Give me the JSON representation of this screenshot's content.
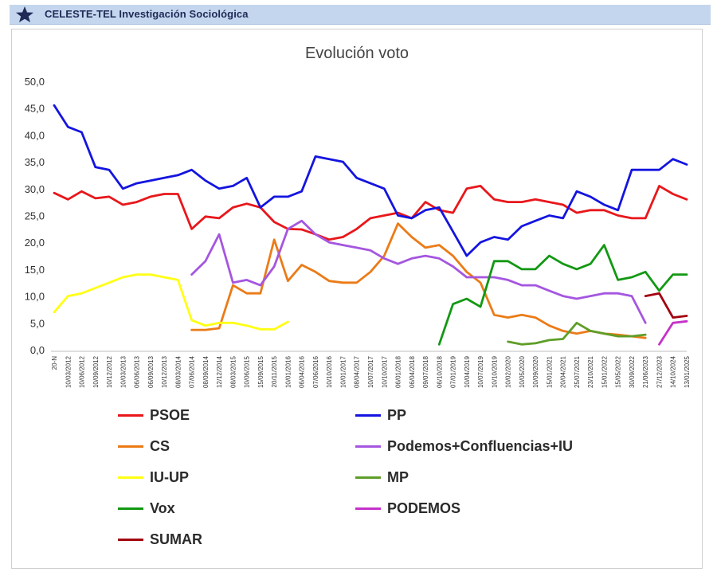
{
  "header": {
    "title": "CELESTE-TEL Investigación Sociológica",
    "icon": "star-icon"
  },
  "chart_data": {
    "type": "line",
    "title": "Evolución voto",
    "xlabel": "",
    "ylabel": "",
    "ylim": [
      0,
      50
    ],
    "yticks": [
      "0,0",
      "5,0",
      "10,0",
      "15,0",
      "20,0",
      "25,0",
      "30,0",
      "35,0",
      "40,0",
      "45,0",
      "50,0"
    ],
    "xticks": [
      "20-N",
      "10/03/2012",
      "10/06/2012",
      "10/09/2012",
      "10/12/2012",
      "10/03/2013",
      "06/06/2013",
      "06/09/2013",
      "10/12/2013",
      "08/03/2014",
      "07/06/2014",
      "08/09/2014",
      "12/12/2014",
      "08/03/2015",
      "10/06/2015",
      "15/09/2015",
      "20/11/2015",
      "10/01/2016",
      "06/04/2016",
      "07/06/2016",
      "10/10/2016",
      "10/01/2017",
      "08/04/2017",
      "10/07/2017",
      "10/10/2017",
      "06/01/2018",
      "06/04/2018",
      "09/07/2018",
      "06/10/2018",
      "07/01/2019",
      "10/04/2019",
      "10/07/2019",
      "10/10/2019",
      "10/02/2020",
      "10/05/2020",
      "10/09/2020",
      "15/01/2021",
      "20/04/2021",
      "25/07/2021",
      "23/10/2021",
      "15/01/2022",
      "15/05/2022",
      "30/09/2022",
      "21/06/2023",
      "27/12/2023",
      "14/10/2024",
      "13/01/2025"
    ],
    "grid": false,
    "legend_position": "bottom",
    "series": [
      {
        "name": "PSOE",
        "color": "#e8171b",
        "x": [
          0,
          1,
          2,
          3,
          4,
          5,
          6,
          7,
          8,
          9,
          10,
          11,
          12,
          13,
          14,
          15,
          16,
          17,
          18,
          19,
          20,
          21,
          22,
          23,
          24,
          25,
          26,
          27,
          28,
          29,
          30,
          31,
          32,
          33,
          34,
          35,
          36,
          37,
          38,
          39,
          40,
          41,
          42,
          43,
          44,
          45,
          46
        ],
        "values": [
          29.2,
          28.0,
          29.5,
          28.2,
          28.5,
          27.0,
          27.5,
          28.5,
          29.0,
          29.0,
          22.5,
          24.8,
          24.5,
          26.5,
          27.2,
          26.5,
          23.8,
          22.5,
          22.4,
          21.5,
          20.5,
          21.0,
          22.5,
          24.5,
          25.0,
          25.5,
          24.5,
          27.5,
          26.0,
          25.5,
          30.0,
          30.5,
          28.0,
          27.5,
          27.5,
          28.0,
          27.5,
          27.0,
          25.5,
          26.0,
          26.0,
          25.0,
          24.5,
          24.5,
          30.5,
          29.0,
          28.0
        ]
      },
      {
        "name": "PP",
        "color": "#1414e0",
        "x": [
          0,
          1,
          2,
          3,
          4,
          5,
          6,
          7,
          8,
          9,
          10,
          11,
          12,
          13,
          14,
          15,
          16,
          17,
          18,
          19,
          20,
          21,
          22,
          23,
          24,
          25,
          26,
          27,
          28,
          29,
          30,
          31,
          32,
          33,
          34,
          35,
          36,
          37,
          38,
          39,
          40,
          41,
          42,
          43,
          44,
          45,
          46
        ],
        "values": [
          45.5,
          41.5,
          40.5,
          34.0,
          33.5,
          30.0,
          31.0,
          31.5,
          32.0,
          32.5,
          33.5,
          31.5,
          30.0,
          30.5,
          32.0,
          26.5,
          28.5,
          28.5,
          29.5,
          36.0,
          35.5,
          35.0,
          32.0,
          31.0,
          30.0,
          25.0,
          24.5,
          26.0,
          26.5,
          22.0,
          17.5,
          20.0,
          21.0,
          20.5,
          23.0,
          24.0,
          25.0,
          24.5,
          29.5,
          28.5,
          27.0,
          26.0,
          33.5,
          33.5,
          33.5,
          35.5,
          34.5
        ]
      },
      {
        "name": "CS",
        "color": "#eb7b17",
        "x": [
          10,
          11,
          12,
          13,
          14,
          15,
          16,
          17,
          18,
          19,
          20,
          21,
          22,
          23,
          24,
          25,
          26,
          27,
          28,
          29,
          30,
          31,
          32,
          33,
          34,
          35,
          36,
          37,
          38,
          39,
          40,
          41,
          42,
          43
        ],
        "values": [
          3.7,
          3.7,
          4.0,
          12.0,
          10.5,
          10.5,
          20.5,
          12.8,
          15.8,
          14.5,
          12.8,
          12.5,
          12.5,
          14.5,
          17.5,
          23.5,
          21.0,
          19.0,
          19.5,
          17.5,
          14.5,
          12.5,
          6.5,
          6.0,
          6.5,
          6.0,
          4.5,
          3.5,
          3.0,
          3.5,
          3.0,
          2.8,
          2.5,
          2.2
        ]
      },
      {
        "name": "Podemos+Confluencias+IU",
        "color": "#a556e0",
        "x": [
          10,
          11,
          12,
          13,
          14,
          15,
          16,
          17,
          18,
          19,
          20,
          21,
          22,
          23,
          24,
          25,
          26,
          27,
          28,
          29,
          30,
          31,
          32,
          33,
          34,
          35,
          36,
          37,
          38,
          39,
          40,
          41,
          42,
          43
        ],
        "values": [
          14.0,
          16.5,
          21.5,
          12.5,
          13.0,
          12.0,
          15.5,
          22.5,
          24.0,
          21.5,
          20.0,
          19.5,
          19.0,
          18.5,
          17.0,
          16.0,
          17.0,
          17.5,
          17.0,
          15.5,
          13.5,
          13.5,
          13.5,
          13.0,
          12.0,
          12.0,
          11.0,
          10.0,
          9.5,
          10.0,
          10.5,
          10.5,
          10.0,
          5.0
        ]
      },
      {
        "name": "IU-UP",
        "color": "#ffff14",
        "x": [
          0,
          1,
          2,
          3,
          4,
          5,
          6,
          7,
          8,
          9,
          10,
          11,
          12,
          13,
          14,
          15,
          16,
          17
        ],
        "values": [
          7.0,
          10.0,
          10.5,
          11.5,
          12.5,
          13.5,
          14.0,
          14.0,
          13.5,
          13.0,
          5.5,
          4.5,
          5.0,
          5.0,
          4.5,
          3.8,
          3.8,
          5.2
        ]
      },
      {
        "name": "MP",
        "color": "#5e9e28",
        "x": [
          33,
          34,
          35,
          36,
          37,
          38,
          39,
          40,
          41,
          42,
          43
        ],
        "values": [
          1.5,
          1.0,
          1.2,
          1.8,
          2.0,
          5.0,
          3.5,
          3.0,
          2.5,
          2.5,
          2.8
        ]
      },
      {
        "name": "Vox",
        "color": "#139813",
        "x": [
          28,
          29,
          30,
          31,
          32,
          33,
          34,
          35,
          36,
          37,
          38,
          39,
          40,
          41,
          42,
          43,
          44,
          45,
          46
        ],
        "values": [
          1.0,
          8.5,
          9.5,
          8.0,
          16.5,
          16.5,
          15.0,
          15.0,
          17.5,
          16.0,
          15.0,
          16.0,
          19.5,
          13.0,
          13.5,
          14.5,
          11.0,
          14.0,
          14.0
        ]
      },
      {
        "name": "PODEMOS",
        "color": "#c431c9",
        "x": [
          44,
          45,
          46
        ],
        "values": [
          1.0,
          5.0,
          5.3
        ]
      },
      {
        "name": "SUMAR",
        "color": "#a3000f",
        "x": [
          43,
          44,
          45,
          46
        ],
        "values": [
          10.0,
          10.5,
          6.0,
          6.3
        ]
      }
    ]
  }
}
